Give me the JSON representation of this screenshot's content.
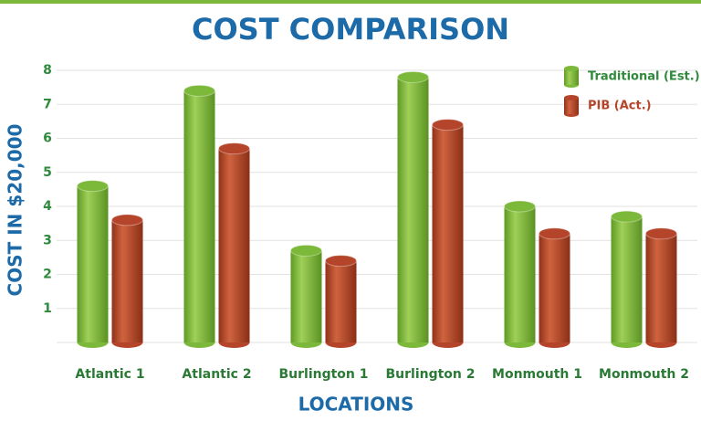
{
  "chart_data": {
    "type": "bar",
    "title": "COST COMPARISON",
    "x_label": "LOCATIONS",
    "y_label": "COST IN $20,000",
    "categories": [
      "Atlantic 1",
      "Atlantic 2",
      "Burlington 1",
      "Burlington 2",
      "Monmouth 1",
      "Monmouth 2"
    ],
    "series": [
      {
        "name": "Traditional (Est.)",
        "color": "#7cb83a",
        "values": [
          4.6,
          7.4,
          2.7,
          7.8,
          4.0,
          3.7
        ]
      },
      {
        "name": "PIB (Act.)",
        "color": "#b5452a",
        "values": [
          3.6,
          5.7,
          2.4,
          6.4,
          3.2,
          3.2
        ]
      }
    ],
    "ylim": [
      0,
      8
    ],
    "yticks": [
      1,
      2,
      3,
      4,
      5,
      6,
      7,
      8
    ],
    "grid": true,
    "legend": "top-right"
  }
}
